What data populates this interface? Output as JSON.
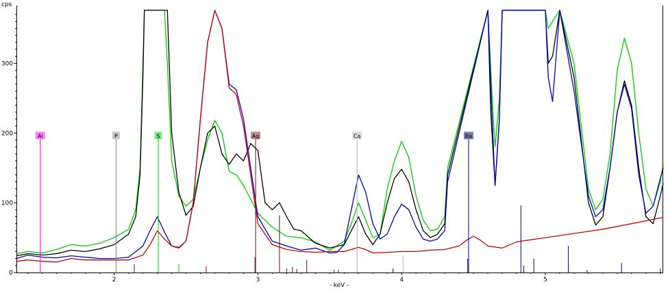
{
  "chart_data": {
    "type": "line",
    "ylabel": "cps",
    "xlabel": "- keV -",
    "xlim": [
      1.32,
      5.82
    ],
    "ylim": [
      0,
      376
    ],
    "xticks": [
      2,
      3,
      4,
      5
    ],
    "xtick_labels": [
      "2",
      "3",
      "4",
      "5"
    ],
    "yticks": [
      0,
      100,
      200,
      300
    ],
    "ytick_labels": [
      "0",
      "100",
      "200",
      "300"
    ],
    "element_markers": [
      {
        "label": "Al",
        "energy": 1.486,
        "color": "#e000e0",
        "box": "#ff80ff"
      },
      {
        "label": "P",
        "energy": 2.013,
        "color": "#808080",
        "box": "#c8c8c8"
      },
      {
        "label": "S",
        "energy": 2.307,
        "color": "#00c000",
        "box": "#7ce87c"
      },
      {
        "label": "Ag",
        "energy": 2.984,
        "color": "#8b0000",
        "box": "#c09090"
      },
      {
        "label": "Ca",
        "energy": 3.69,
        "color": "#b0b0b0",
        "box": "#dcdcdc"
      },
      {
        "label": "Ba",
        "energy": 4.466,
        "color": "#00008b",
        "box": "#8080b8"
      }
    ],
    "marker_height": 196,
    "series": [
      {
        "color": "#00d000",
        "x": [
          1.32,
          1.4,
          1.5,
          1.6,
          1.7,
          1.8,
          1.9,
          2.0,
          2.1,
          2.15,
          2.18,
          2.2,
          2.21,
          2.35,
          2.37,
          2.4,
          2.45,
          2.5,
          2.55,
          2.6,
          2.65,
          2.7,
          2.75,
          2.8,
          2.85,
          2.9,
          2.95,
          3.0,
          3.1,
          3.2,
          3.3,
          3.4,
          3.5,
          3.6,
          3.65,
          3.7,
          3.75,
          3.8,
          3.85,
          3.9,
          3.95,
          4.0,
          4.05,
          4.1,
          4.15,
          4.2,
          4.25,
          4.3,
          4.32,
          4.6,
          4.63,
          4.65,
          4.68,
          4.7,
          4.73,
          5.0,
          5.02,
          5.05,
          5.1,
          5.2,
          5.3,
          5.35,
          5.4,
          5.45,
          5.5,
          5.55,
          5.6,
          5.65,
          5.7,
          5.75,
          5.8,
          5.82
        ],
        "y": [
          27,
          30,
          28,
          33,
          40,
          38,
          42,
          50,
          62,
          90,
          150,
          300,
          376,
          376,
          300,
          160,
          110,
          95,
          105,
          150,
          190,
          218,
          200,
          145,
          140,
          125,
          105,
          85,
          65,
          52,
          50,
          44,
          32,
          45,
          70,
          100,
          75,
          50,
          55,
          120,
          160,
          188,
          165,
          110,
          75,
          60,
          62,
          80,
          150,
          376,
          250,
          180,
          250,
          376,
          376,
          376,
          350,
          360,
          376,
          300,
          120,
          90,
          105,
          170,
          290,
          336,
          300,
          200,
          120,
          95,
          130,
          155
        ]
      },
      {
        "color": "#000000",
        "x": [
          1.32,
          1.4,
          1.5,
          1.6,
          1.7,
          1.8,
          1.9,
          2.0,
          2.1,
          2.15,
          2.18,
          2.2,
          2.21,
          2.37,
          2.4,
          2.45,
          2.5,
          2.55,
          2.6,
          2.65,
          2.7,
          2.75,
          2.8,
          2.85,
          2.9,
          2.95,
          3.0,
          3.05,
          3.1,
          3.15,
          3.2,
          3.25,
          3.3,
          3.4,
          3.5,
          3.6,
          3.65,
          3.7,
          3.75,
          3.8,
          3.85,
          3.9,
          3.95,
          4.0,
          4.05,
          4.1,
          4.15,
          4.2,
          4.25,
          4.3,
          4.32,
          4.6,
          4.62,
          4.65,
          4.68,
          4.7,
          4.73,
          5.0,
          5.02,
          5.05,
          5.1,
          5.2,
          5.3,
          5.35,
          5.4,
          5.45,
          5.5,
          5.55,
          5.6,
          5.65,
          5.7,
          5.75,
          5.8,
          5.82
        ],
        "y": [
          24,
          27,
          25,
          27,
          32,
          30,
          34,
          40,
          55,
          80,
          140,
          280,
          376,
          376,
          200,
          115,
          82,
          95,
          150,
          200,
          210,
          170,
          155,
          170,
          160,
          185,
          175,
          100,
          90,
          100,
          80,
          62,
          60,
          42,
          35,
          40,
          60,
          80,
          55,
          40,
          55,
          100,
          135,
          148,
          130,
          90,
          60,
          50,
          55,
          70,
          140,
          376,
          230,
          125,
          220,
          376,
          376,
          376,
          300,
          310,
          376,
          280,
          100,
          68,
          80,
          150,
          230,
          275,
          240,
          150,
          80,
          70,
          110,
          128
        ]
      },
      {
        "color": "#0000c0",
        "x": [
          1.32,
          1.4,
          1.5,
          1.6,
          1.7,
          1.8,
          1.9,
          2.0,
          2.1,
          2.2,
          2.25,
          2.3,
          2.35,
          2.4,
          2.45,
          2.5,
          2.55,
          2.6,
          2.65,
          2.7,
          2.75,
          2.8,
          2.85,
          2.9,
          3.0,
          3.1,
          3.2,
          3.3,
          3.4,
          3.5,
          3.55,
          3.6,
          3.65,
          3.7,
          3.75,
          3.8,
          3.85,
          3.9,
          3.95,
          4.0,
          4.05,
          4.1,
          4.15,
          4.2,
          4.25,
          4.3,
          4.32,
          4.6,
          4.63,
          4.65,
          4.68,
          4.7,
          4.73,
          5.0,
          5.02,
          5.05,
          5.1,
          5.2,
          5.3,
          5.35,
          5.4,
          5.45,
          5.5,
          5.55,
          5.6,
          5.65,
          5.7,
          5.75,
          5.8,
          5.82
        ],
        "y": [
          20,
          25,
          22,
          21,
          24,
          22,
          20,
          20,
          22,
          38,
          60,
          80,
          58,
          38,
          35,
          45,
          100,
          220,
          330,
          376,
          350,
          270,
          262,
          220,
          80,
          45,
          38,
          32,
          35,
          28,
          29,
          40,
          90,
          140,
          115,
          70,
          48,
          55,
          80,
          98,
          90,
          65,
          48,
          45,
          48,
          60,
          130,
          376,
          220,
          125,
          220,
          376,
          376,
          376,
          280,
          245,
          376,
          260,
          110,
          80,
          90,
          150,
          230,
          270,
          235,
          140,
          85,
          95,
          135,
          150
        ]
      },
      {
        "color": "#d00000",
        "x": [
          1.32,
          1.4,
          1.5,
          1.6,
          1.7,
          1.8,
          1.9,
          2.0,
          2.1,
          2.2,
          2.25,
          2.3,
          2.35,
          2.4,
          2.45,
          2.5,
          2.55,
          2.6,
          2.65,
          2.7,
          2.75,
          2.8,
          2.85,
          2.9,
          3.0,
          3.1,
          3.2,
          3.3,
          3.4,
          3.5,
          3.6,
          3.7,
          3.75,
          3.8,
          3.9,
          4.0,
          4.1,
          4.2,
          4.3,
          4.4,
          4.45,
          4.5,
          4.55,
          4.6,
          4.7,
          4.8,
          5.0,
          5.2,
          5.4,
          5.6,
          5.82
        ],
        "y": [
          16,
          18,
          16,
          15,
          20,
          18,
          18,
          18,
          18,
          25,
          40,
          60,
          48,
          38,
          36,
          45,
          100,
          220,
          330,
          376,
          350,
          265,
          255,
          210,
          70,
          40,
          33,
          30,
          29,
          30,
          30,
          36,
          33,
          28,
          29,
          30,
          30,
          32,
          33,
          38,
          46,
          52,
          46,
          38,
          35,
          44,
          50,
          56,
          62,
          70,
          79
        ]
      }
    ],
    "tick_lines": [
      {
        "energy": 2.14,
        "height": 12,
        "color": "#8b0000"
      },
      {
        "energy": 2.45,
        "height": 12,
        "color": "#00c000"
      },
      {
        "energy": 2.64,
        "height": 9,
        "color": "#8b0000"
      },
      {
        "energy": 2.98,
        "height": 22,
        "color": "#8b0000"
      },
      {
        "energy": 3.15,
        "height": 82,
        "color": "#8b0000"
      },
      {
        "energy": 3.2,
        "height": 6,
        "color": "#8b0000"
      },
      {
        "energy": 3.24,
        "height": 8,
        "color": "#8b0000"
      },
      {
        "energy": 3.27,
        "height": 5,
        "color": "#8b0000"
      },
      {
        "energy": 3.34,
        "height": 18,
        "color": "#8b0000"
      },
      {
        "energy": 3.53,
        "height": 4,
        "color": "#8b0000"
      },
      {
        "energy": 3.56,
        "height": 4,
        "color": "#8b0000"
      },
      {
        "energy": 3.94,
        "height": 6,
        "color": "#00008b"
      },
      {
        "energy": 4.01,
        "height": 25,
        "color": "#c0c0c0"
      },
      {
        "energy": 4.46,
        "height": 20,
        "color": "#00008b"
      },
      {
        "energy": 4.83,
        "height": 96,
        "color": "#00008b"
      },
      {
        "energy": 4.85,
        "height": 10,
        "color": "#00008b"
      },
      {
        "energy": 4.92,
        "height": 20,
        "color": "#00008b"
      },
      {
        "energy": 5.16,
        "height": 38,
        "color": "#00008b"
      },
      {
        "energy": 5.29,
        "height": 4,
        "color": "#00008b"
      },
      {
        "energy": 5.53,
        "height": 14,
        "color": "#00008b"
      },
      {
        "energy": 5.8,
        "height": 6,
        "color": "#00008b"
      }
    ]
  }
}
